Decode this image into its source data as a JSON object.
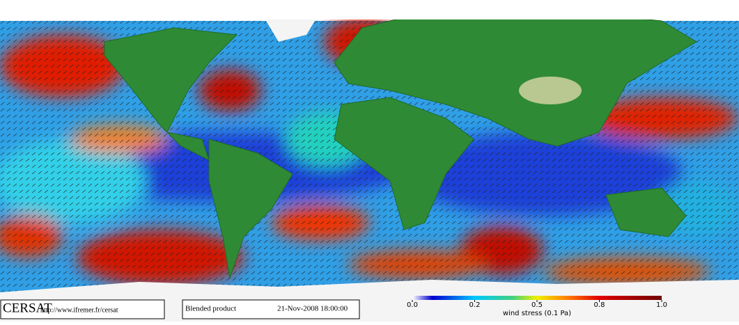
{
  "header": {
    "logo": "CERSAT",
    "url": "http://www.ifremer.fr/cersat"
  },
  "product": {
    "name": "Blended product",
    "date": "21-Nov-2008 18:00:00"
  },
  "colorbar": {
    "label": "wind stress (0.1 Pa)",
    "ticks": [
      {
        "value": 0,
        "label": "0.0"
      },
      0.2,
      0.5,
      0.8,
      {
        "value": 1,
        "label": "1.0"
      }
    ]
  }
}
